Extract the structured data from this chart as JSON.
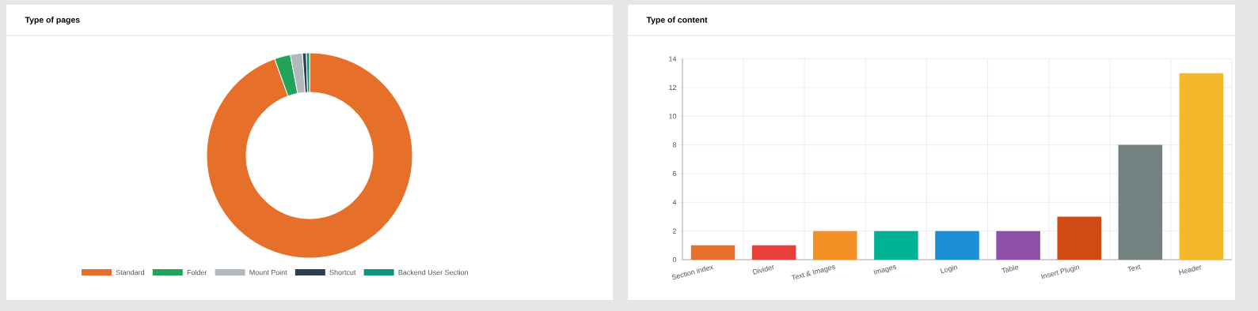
{
  "chart_data": [
    {
      "type": "donut",
      "title": "Type of pages",
      "categories": [
        "Standard",
        "Folder",
        "Mount Point",
        "Shortcut",
        "Backend User Section"
      ],
      "values": [
        94.5,
        2.5,
        1.9,
        0.6,
        0.5
      ],
      "colors": [
        "#e67029",
        "#22a35a",
        "#b2b8bb",
        "#2c3e50",
        "#109480"
      ],
      "legend": "bottom"
    },
    {
      "type": "bar",
      "title": "Type of content",
      "categories": [
        "Section index",
        "Divider",
        "Text & Images",
        "Images",
        "Login",
        "Table",
        "Insert Plugin",
        "Text",
        "Header"
      ],
      "values": [
        1,
        1,
        2,
        2,
        2,
        2,
        3,
        8,
        13
      ],
      "colors": [
        "#e67029",
        "#e8403a",
        "#f39127",
        "#00b394",
        "#1a8fd6",
        "#8e4fa8",
        "#d14a13",
        "#748181",
        "#f3b92b"
      ],
      "ylim": [
        0,
        14
      ],
      "yticks": [
        0,
        2,
        4,
        6,
        8,
        10,
        12,
        14
      ],
      "grid": true
    }
  ]
}
